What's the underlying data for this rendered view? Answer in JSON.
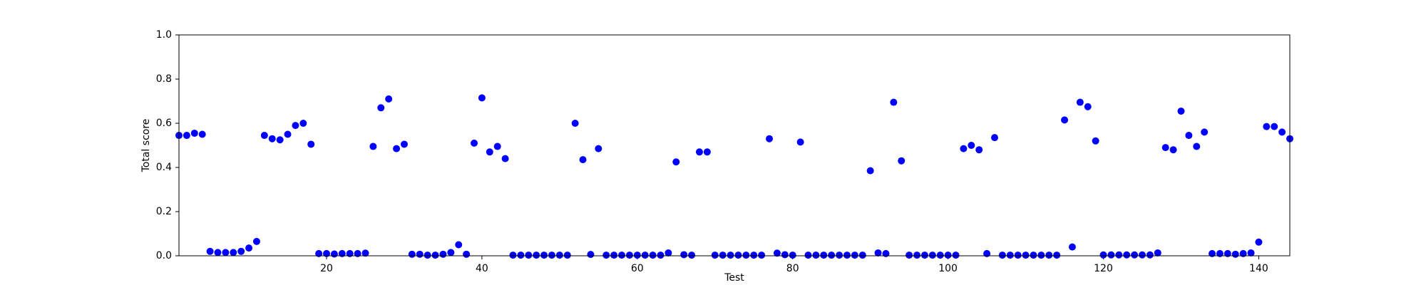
{
  "chart_data": {
    "type": "scatter",
    "color": "#0000ff",
    "grid": false,
    "x_label": "Test",
    "y_label": "Total score",
    "x": [
      1,
      2,
      3,
      4,
      5,
      6,
      7,
      8,
      9,
      10,
      11,
      12,
      13,
      14,
      15,
      16,
      17,
      18,
      19,
      20,
      21,
      22,
      23,
      24,
      25,
      26,
      27,
      28,
      29,
      30,
      31,
      32,
      33,
      34,
      35,
      36,
      37,
      38,
      39,
      40,
      41,
      42,
      43,
      44,
      45,
      46,
      47,
      48,
      49,
      50,
      51,
      52,
      53,
      54,
      55,
      56,
      57,
      58,
      59,
      60,
      61,
      62,
      63,
      64,
      65,
      66,
      67,
      68,
      69,
      70,
      71,
      72,
      73,
      74,
      75,
      76,
      77,
      78,
      79,
      80,
      81,
      82,
      83,
      84,
      85,
      86,
      87,
      88,
      89,
      90,
      91,
      92,
      93,
      94,
      95,
      96,
      97,
      98,
      99,
      100,
      101,
      102,
      103,
      104,
      105,
      106,
      107,
      108,
      109,
      110,
      111,
      112,
      113,
      114,
      115,
      116,
      117,
      118,
      119,
      120,
      121,
      122,
      123,
      124,
      125,
      126,
      127,
      128,
      129,
      130,
      131,
      132,
      133,
      134,
      135,
      136,
      137,
      138,
      139,
      140,
      141,
      142,
      143,
      144
    ],
    "values": [
      0.545,
      0.545,
      0.555,
      0.55,
      0.02,
      0.015,
      0.015,
      0.015,
      0.02,
      0.035,
      0.065,
      0.545,
      0.53,
      0.525,
      0.55,
      0.59,
      0.6,
      0.505,
      0.01,
      0.01,
      0.008,
      0.01,
      0.01,
      0.01,
      0.012,
      0.495,
      0.67,
      0.71,
      0.485,
      0.505,
      0.007,
      0.007,
      0.003,
      0.003,
      0.007,
      0.015,
      0.05,
      0.007,
      0.51,
      0.715,
      0.47,
      0.495,
      0.44,
      0.003,
      0.003,
      0.003,
      0.003,
      0.003,
      0.003,
      0.003,
      0.003,
      0.6,
      0.435,
      0.006,
      0.485,
      0.003,
      0.003,
      0.003,
      0.003,
      0.003,
      0.003,
      0.003,
      0.003,
      0.013,
      0.425,
      0.005,
      0.003,
      0.47,
      0.47,
      0.003,
      0.003,
      0.003,
      0.003,
      0.003,
      0.003,
      0.003,
      0.53,
      0.012,
      0.005,
      0.003,
      0.515,
      0.003,
      0.003,
      0.003,
      0.003,
      0.003,
      0.003,
      0.003,
      0.003,
      0.385,
      0.013,
      0.01,
      0.695,
      0.43,
      0.003,
      0.003,
      0.003,
      0.003,
      0.003,
      0.003,
      0.003,
      0.485,
      0.5,
      0.48,
      0.01,
      0.535,
      0.003,
      0.003,
      0.003,
      0.003,
      0.003,
      0.003,
      0.003,
      0.003,
      0.615,
      0.04,
      0.695,
      0.675,
      0.52,
      0.004,
      0.004,
      0.004,
      0.004,
      0.004,
      0.004,
      0.004,
      0.013,
      0.49,
      0.48,
      0.655,
      0.545,
      0.495,
      0.56,
      0.01,
      0.01,
      0.01,
      0.007,
      0.01,
      0.013,
      0.062,
      0.585,
      0.585,
      0.56,
      0.53
    ],
    "xlim": [
      1,
      144
    ],
    "xticks": [
      20,
      40,
      60,
      80,
      100,
      120,
      140
    ],
    "ylim": [
      0,
      1
    ],
    "yticks": [
      {
        "value": 0,
        "label": "0.0"
      },
      0.2,
      0.4,
      0.6,
      0.8,
      {
        "value": 1,
        "label": "1.0"
      }
    ]
  }
}
